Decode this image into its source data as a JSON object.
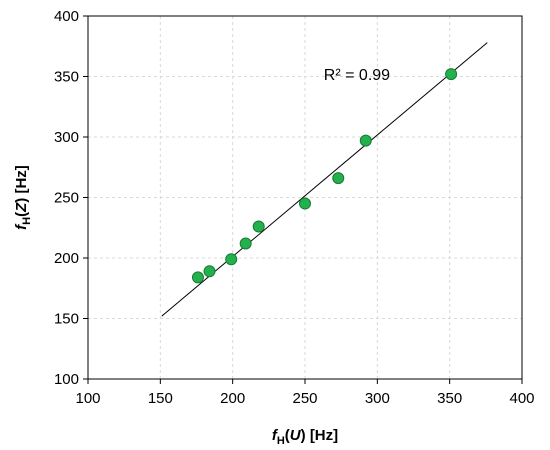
{
  "chart_data": {
    "type": "scatter",
    "title": "",
    "xlabel": {
      "main": "f",
      "sub": "H",
      "arg": "U",
      "unit": "[Hz]"
    },
    "ylabel": {
      "main": "f",
      "sub": "H",
      "arg": "Z",
      "unit": "[Hz]"
    },
    "xlim": [
      100,
      400
    ],
    "ylim": [
      100,
      400
    ],
    "xticks": [
      100,
      150,
      200,
      250,
      300,
      350,
      400
    ],
    "yticks": [
      100,
      150,
      200,
      250,
      300,
      350,
      400
    ],
    "grid": true,
    "legend": "none",
    "series": [
      {
        "points": [
          {
            "x": 176,
            "y": 184
          },
          {
            "x": 184,
            "y": 189
          },
          {
            "x": 199,
            "y": 199
          },
          {
            "x": 209,
            "y": 212
          },
          {
            "x": 218,
            "y": 226
          },
          {
            "x": 250,
            "y": 245
          },
          {
            "x": 273,
            "y": 266
          },
          {
            "x": 292,
            "y": 297
          },
          {
            "x": 351,
            "y": 352
          }
        ],
        "color": "#22b14c"
      }
    ],
    "trendline": {
      "x": [
        151,
        376
      ],
      "y": [
        152,
        378
      ],
      "color": "#000000"
    },
    "annotation": {
      "text": "R² = 0.99",
      "x": 263,
      "y": 347
    }
  }
}
